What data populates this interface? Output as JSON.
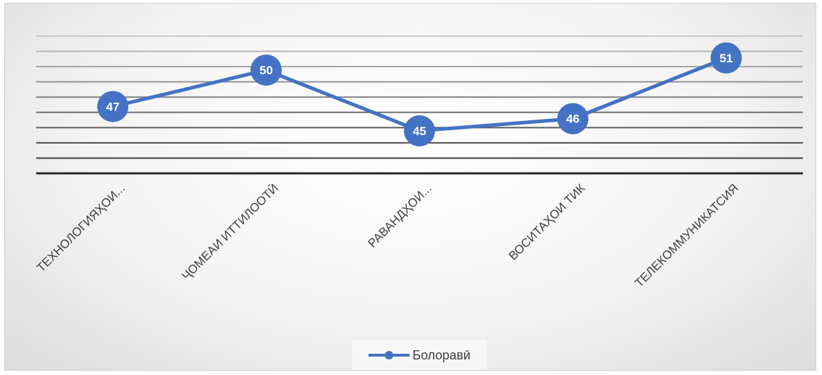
{
  "chart_data": {
    "type": "line",
    "categories": [
      "ТЕХНОЛОГИЯҲОИ...",
      "ҶОМЕАИ ИТТИЛООТӢ",
      "РАВАНДҲОИ...",
      "ВОСИТАҲОИ ТИК",
      "ТЕЛЕКОММУНИКАТСИЯ"
    ],
    "series": [
      {
        "name": "Болоравӣ",
        "values": [
          47,
          50,
          45,
          46,
          51
        ],
        "color": "#4472c4"
      }
    ],
    "ylim": [
      41.5,
      52.8
    ],
    "grid": true,
    "legend_position": "bottom",
    "data_labels": true
  }
}
